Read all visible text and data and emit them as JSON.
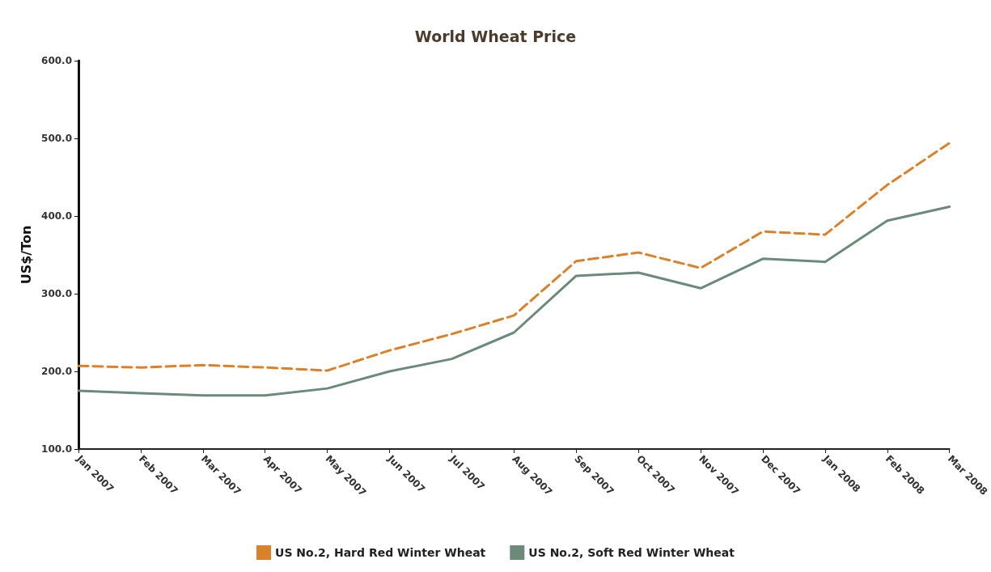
{
  "chart_data": {
    "type": "line",
    "title": "World Wheat Price",
    "ylabel": "US$/Ton",
    "categories": [
      "Jan 2007",
      "Feb 2007",
      "Mar 2007",
      "Apr 2007",
      "May 2007",
      "Jun 2007",
      "Jul 2007",
      "Aug 2007",
      "Sep 2007",
      "Oct 2007",
      "Nov 2007",
      "Dec 2007",
      "Jan 2008",
      "Feb 2008",
      "Mar 2008"
    ],
    "series": [
      {
        "name": "US No.2, Hard Red Winter Wheat",
        "color": "#d9822b",
        "line_style": "dashed",
        "values": [
          207,
          205,
          208,
          205,
          201,
          227,
          248,
          272,
          342,
          353,
          333,
          380,
          376,
          440,
          494
        ]
      },
      {
        "name": "US No.2, Soft Red Winter Wheat",
        "color": "#6b8a7a",
        "line_style": "solid",
        "values": [
          175,
          172,
          169,
          169,
          178,
          200,
          216,
          250,
          323,
          327,
          307,
          345,
          341,
          394,
          412
        ]
      }
    ],
    "ylim": [
      100,
      600
    ],
    "yticks": [
      {
        "value": 100,
        "label": "100.0"
      },
      {
        "value": 200,
        "label": "200.0"
      },
      {
        "value": 300,
        "label": "300.0"
      },
      {
        "value": 400,
        "label": "400.0"
      },
      {
        "value": 500,
        "label": "500.0"
      },
      {
        "value": 600,
        "label": "600.0"
      }
    ],
    "grid": false,
    "legend": "bottom",
    "marker": "none"
  }
}
